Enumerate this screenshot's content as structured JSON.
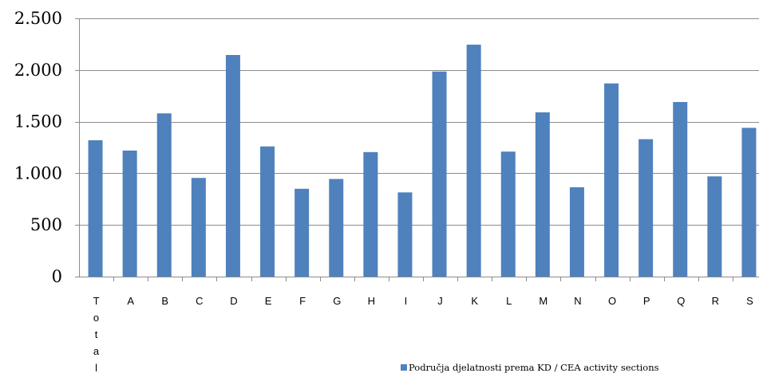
{
  "chart_data": {
    "type": "bar",
    "categories": [
      "Total",
      "A",
      "B",
      "C",
      "D",
      "E",
      "F",
      "G",
      "H",
      "I",
      "J",
      "K",
      "L",
      "M",
      "N",
      "O",
      "P",
      "Q",
      "R",
      "S"
    ],
    "series": [
      {
        "name": "Područja djelatnosti prema KD / CEA activity sections",
        "color": "#4F81BD",
        "values": [
          1320,
          1220,
          1580,
          955,
          2145,
          1260,
          850,
          945,
          1205,
          815,
          1985,
          2245,
          1210,
          1590,
          865,
          1870,
          1330,
          1690,
          970,
          1440
        ]
      }
    ],
    "ylim": [
      0,
      2500
    ],
    "yticks": [
      0,
      500,
      1000,
      1500,
      2000,
      2500
    ],
    "ytick_labels": [
      "0",
      "500",
      "1.000",
      "1.500",
      "2.000",
      "2.500"
    ],
    "grid": true,
    "legend": "bottom-right"
  }
}
